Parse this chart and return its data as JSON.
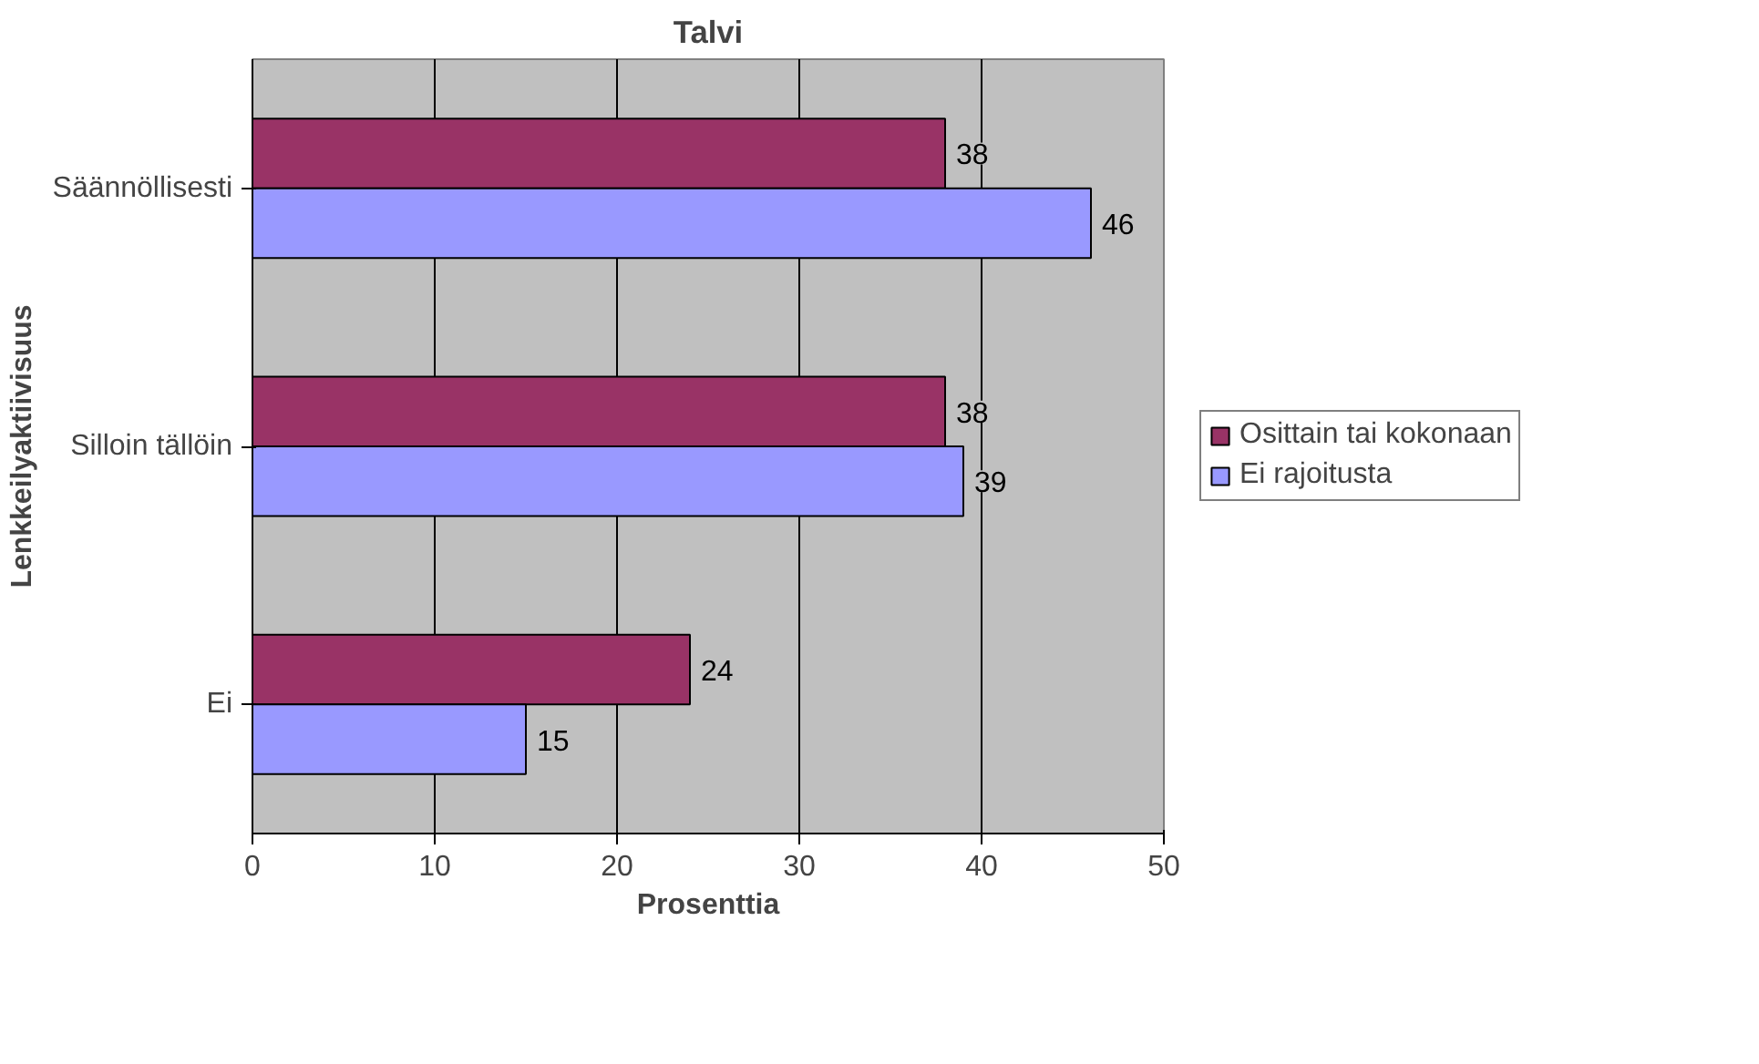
{
  "chart_data": {
    "type": "bar",
    "orientation": "horizontal",
    "title": "Talvi",
    "xlabel": "Prosenttia",
    "ylabel": "Lenkkeilyaktiivisuus",
    "categories": [
      "Säännöllisesti",
      "Silloin tällöin",
      "Ei"
    ],
    "series": [
      {
        "name": "Osittain tai kokonaan",
        "color": "#993366",
        "values": [
          38,
          38,
          24
        ]
      },
      {
        "name": "Ei rajoitusta",
        "color": "#9999ff",
        "values": [
          46,
          39,
          15
        ]
      }
    ],
    "xlim": [
      0,
      50
    ],
    "xticks": [
      0,
      10,
      20,
      30,
      40,
      50
    ],
    "grid": "x",
    "legend": "right",
    "data_labels": true
  }
}
